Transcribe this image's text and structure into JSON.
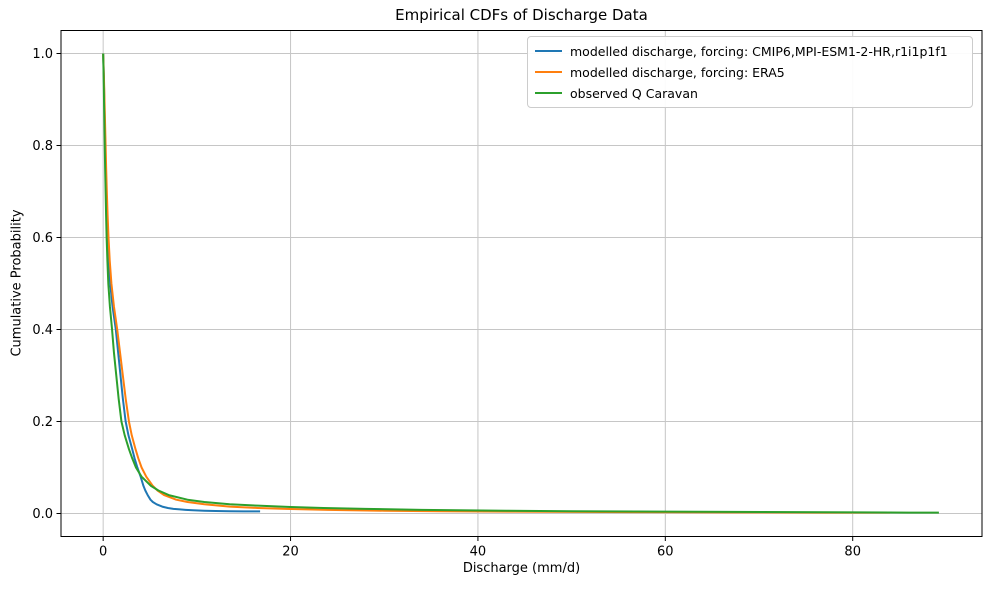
{
  "figure": {
    "background": "#ffffff"
  },
  "chart_data": {
    "type": "line",
    "title": "Empirical CDFs of Discharge Data",
    "xlabel": "Discharge (mm/d)",
    "ylabel": "Cumulative Probability",
    "xlim": [
      -4.5,
      93.8
    ],
    "ylim": [
      -0.05,
      1.05
    ],
    "xticks": [
      0,
      20,
      40,
      60,
      80
    ],
    "xtick_labels": [
      "0",
      "20",
      "40",
      "60",
      "80"
    ],
    "yticks": [
      0.0,
      0.2,
      0.4,
      0.6,
      0.8,
      1.0
    ],
    "ytick_labels": [
      "0.0",
      "0.2",
      "0.4",
      "0.6",
      "0.8",
      "1.0"
    ],
    "grid": true,
    "grid_color": "#c6c6c6",
    "spine_color": "#000000",
    "legend_position": "upper right",
    "series": [
      {
        "name": "modelled discharge, forcing: CMIP6,MPI-ESM1-2-HR,r1i1p1f1",
        "color": "#1f77b4",
        "points": [
          [
            0,
            1.0
          ],
          [
            0.07,
            0.95
          ],
          [
            0.12,
            0.9
          ],
          [
            0.17,
            0.85
          ],
          [
            0.22,
            0.8
          ],
          [
            0.27,
            0.75
          ],
          [
            0.33,
            0.7
          ],
          [
            0.39,
            0.65
          ],
          [
            0.46,
            0.6
          ],
          [
            0.58,
            0.55
          ],
          [
            0.75,
            0.5
          ],
          [
            1.0,
            0.45
          ],
          [
            1.35,
            0.4
          ],
          [
            1.6,
            0.35
          ],
          [
            1.85,
            0.3
          ],
          [
            2.1,
            0.25
          ],
          [
            2.4,
            0.2
          ],
          [
            2.7,
            0.17
          ],
          [
            3.1,
            0.14
          ],
          [
            3.35,
            0.12
          ],
          [
            3.65,
            0.1
          ],
          [
            4.0,
            0.08
          ],
          [
            4.3,
            0.06
          ],
          [
            4.5,
            0.05
          ],
          [
            4.75,
            0.04
          ],
          [
            5.05,
            0.03
          ],
          [
            5.3,
            0.025
          ],
          [
            5.7,
            0.02
          ],
          [
            6.3,
            0.015
          ],
          [
            6.9,
            0.012
          ],
          [
            7.5,
            0.01
          ],
          [
            8.2,
            0.009
          ],
          [
            8.8,
            0.008
          ],
          [
            9.6,
            0.007
          ],
          [
            10.8,
            0.006
          ],
          [
            12.0,
            0.0055
          ],
          [
            13.5,
            0.005
          ],
          [
            15.0,
            0.0047
          ],
          [
            16.75,
            0.0045
          ]
        ]
      },
      {
        "name": "modelled discharge, forcing: ERA5",
        "color": "#ff7f0e",
        "points": [
          [
            0,
            1.0
          ],
          [
            0.08,
            0.95
          ],
          [
            0.14,
            0.9
          ],
          [
            0.2,
            0.85
          ],
          [
            0.26,
            0.8
          ],
          [
            0.32,
            0.75
          ],
          [
            0.39,
            0.7
          ],
          [
            0.47,
            0.65
          ],
          [
            0.57,
            0.6
          ],
          [
            0.7,
            0.55
          ],
          [
            0.88,
            0.5
          ],
          [
            1.15,
            0.45
          ],
          [
            1.5,
            0.4
          ],
          [
            1.8,
            0.35
          ],
          [
            2.1,
            0.3
          ],
          [
            2.4,
            0.25
          ],
          [
            2.75,
            0.2
          ],
          [
            3.05,
            0.17
          ],
          [
            3.45,
            0.14
          ],
          [
            3.75,
            0.12
          ],
          [
            4.1,
            0.1
          ],
          [
            4.6,
            0.08
          ],
          [
            5.3,
            0.06
          ],
          [
            5.8,
            0.05
          ],
          [
            6.5,
            0.04
          ],
          [
            7.8,
            0.03
          ],
          [
            9.0,
            0.025
          ],
          [
            10.8,
            0.02
          ],
          [
            13.5,
            0.015
          ],
          [
            16.5,
            0.012
          ],
          [
            19.5,
            0.01
          ],
          [
            24,
            0.008
          ],
          [
            30,
            0.006
          ],
          [
            36,
            0.005
          ],
          [
            44,
            0.004
          ],
          [
            50,
            0.0035
          ],
          [
            58,
            0.003
          ],
          [
            67,
            0.0025
          ],
          [
            77,
            0.002
          ],
          [
            84,
            0.0018
          ]
        ]
      },
      {
        "name": "observed Q Caravan",
        "color": "#2ca02c",
        "points": [
          [
            0,
            1.0
          ],
          [
            0.05,
            0.95
          ],
          [
            0.09,
            0.9
          ],
          [
            0.13,
            0.85
          ],
          [
            0.17,
            0.8
          ],
          [
            0.21,
            0.75
          ],
          [
            0.26,
            0.7
          ],
          [
            0.31,
            0.65
          ],
          [
            0.37,
            0.6
          ],
          [
            0.45,
            0.55
          ],
          [
            0.55,
            0.5
          ],
          [
            0.72,
            0.45
          ],
          [
            0.95,
            0.4
          ],
          [
            1.15,
            0.35
          ],
          [
            1.4,
            0.3
          ],
          [
            1.65,
            0.25
          ],
          [
            1.95,
            0.2
          ],
          [
            2.3,
            0.17
          ],
          [
            2.75,
            0.14
          ],
          [
            3.1,
            0.12
          ],
          [
            3.5,
            0.1
          ],
          [
            4.1,
            0.08
          ],
          [
            5.1,
            0.06
          ],
          [
            5.9,
            0.05
          ],
          [
            7.0,
            0.04
          ],
          [
            9.0,
            0.03
          ],
          [
            10.8,
            0.025
          ],
          [
            13.5,
            0.02
          ],
          [
            16.5,
            0.017
          ],
          [
            20,
            0.014
          ],
          [
            23.5,
            0.012
          ],
          [
            28,
            0.01
          ],
          [
            34,
            0.008
          ],
          [
            43,
            0.006
          ],
          [
            50,
            0.005
          ],
          [
            60,
            0.004
          ],
          [
            67,
            0.0035
          ],
          [
            74,
            0.003
          ],
          [
            81,
            0.0025
          ],
          [
            86,
            0.002
          ],
          [
            89.2,
            0.002
          ]
        ]
      }
    ]
  }
}
